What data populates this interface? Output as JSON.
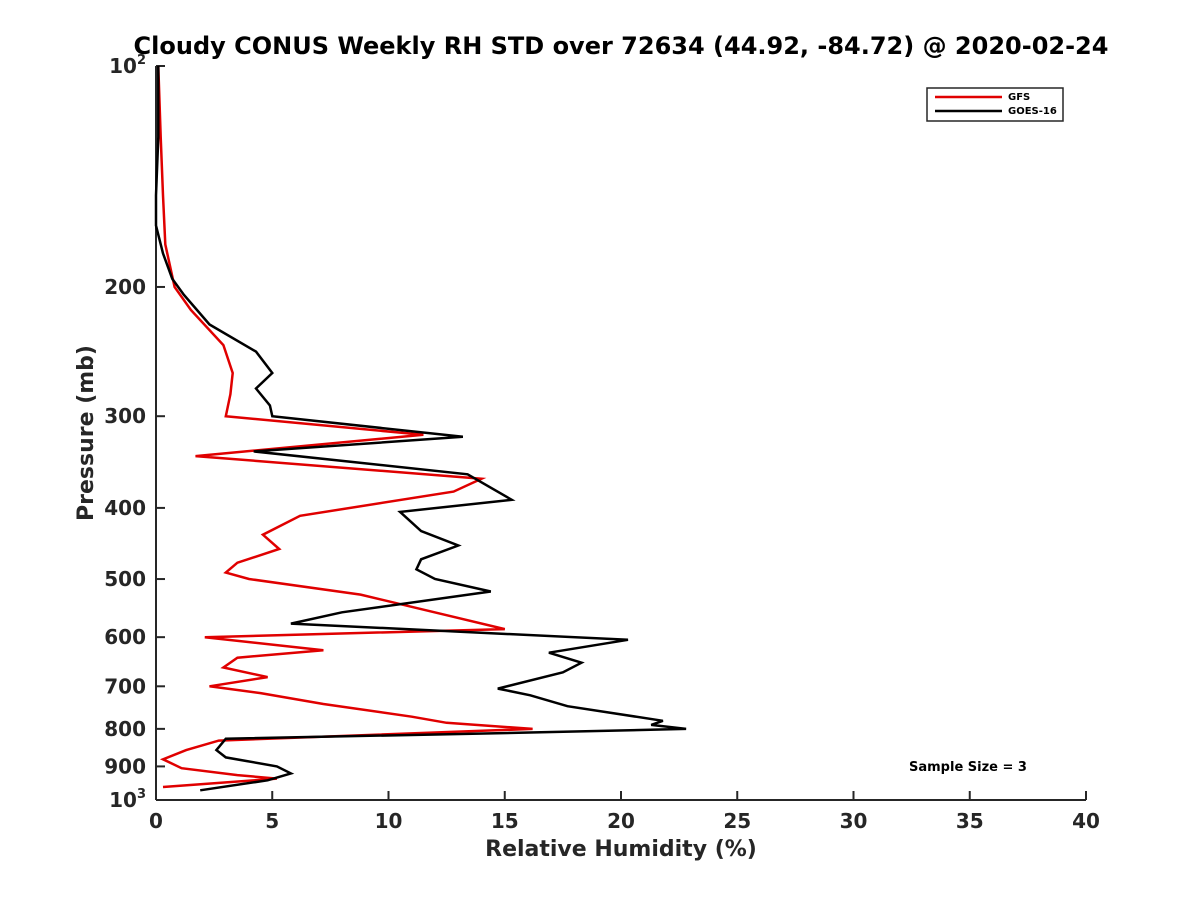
{
  "chart_data": {
    "type": "line",
    "title": "Cloudy CONUS Weekly RH STD over 72634 (44.92, -84.72) @ 2020-02-24",
    "xlabel": "Relative Humidity (%)",
    "ylabel": "Pressure (mb)",
    "xlim": [
      0,
      40
    ],
    "ylim": [
      100,
      1000
    ],
    "y_scale": "log",
    "y_reversed": true,
    "grid": false,
    "legend_position": "top-right",
    "x_ticks": [
      "0",
      "5",
      "10",
      "15",
      "20",
      "25",
      "30",
      "35",
      "40"
    ],
    "y_ticks": [
      {
        "value": 100,
        "base": "10",
        "exp": "2"
      },
      {
        "value": 200,
        "base": "200",
        "exp": ""
      },
      {
        "value": 300,
        "base": "300",
        "exp": ""
      },
      {
        "value": 400,
        "base": "400",
        "exp": ""
      },
      {
        "value": 500,
        "base": "500",
        "exp": ""
      },
      {
        "value": 600,
        "base": "600",
        "exp": ""
      },
      {
        "value": 700,
        "base": "700",
        "exp": ""
      },
      {
        "value": 800,
        "base": "800",
        "exp": ""
      },
      {
        "value": 900,
        "base": "900",
        "exp": ""
      },
      {
        "value": 1000,
        "base": "10",
        "exp": "3"
      }
    ],
    "annotation": "Sample Size = 3",
    "series": [
      {
        "name": "GFS",
        "color": "#e00000",
        "points": [
          [
            0.1,
            100
          ],
          [
            0.2,
            125
          ],
          [
            0.3,
            150
          ],
          [
            0.4,
            175
          ],
          [
            0.8,
            200
          ],
          [
            1.5,
            215
          ],
          [
            2.9,
            240
          ],
          [
            3.3,
            262
          ],
          [
            3.2,
            280
          ],
          [
            3.0,
            300
          ],
          [
            11.5,
            318
          ],
          [
            1.7,
            340
          ],
          [
            14.0,
            365
          ],
          [
            12.8,
            380
          ],
          [
            6.2,
            410
          ],
          [
            4.6,
            435
          ],
          [
            5.3,
            455
          ],
          [
            3.5,
            475
          ],
          [
            3.0,
            490
          ],
          [
            4.0,
            500
          ],
          [
            8.8,
            525
          ],
          [
            12.5,
            560
          ],
          [
            15.0,
            585
          ],
          [
            2.1,
            600
          ],
          [
            7.2,
            625
          ],
          [
            3.5,
            640
          ],
          [
            2.9,
            660
          ],
          [
            4.8,
            680
          ],
          [
            2.3,
            700
          ],
          [
            4.5,
            715
          ],
          [
            7.2,
            740
          ],
          [
            11.0,
            770
          ],
          [
            12.5,
            785
          ],
          [
            16.2,
            800
          ],
          [
            2.7,
            830
          ],
          [
            1.3,
            855
          ],
          [
            0.3,
            880
          ],
          [
            1.1,
            905
          ],
          [
            3.5,
            925
          ],
          [
            5.2,
            935
          ],
          [
            0.3,
            960
          ]
        ]
      },
      {
        "name": "GOES-16",
        "color": "#000000",
        "points": [
          [
            0.1,
            100
          ],
          [
            0.1,
            125
          ],
          [
            0.0,
            150
          ],
          [
            0.0,
            165
          ],
          [
            0.3,
            180
          ],
          [
            0.7,
            195
          ],
          [
            1.2,
            205
          ],
          [
            2.3,
            225
          ],
          [
            4.3,
            245
          ],
          [
            5.0,
            262
          ],
          [
            4.3,
            275
          ],
          [
            4.9,
            290
          ],
          [
            5.0,
            300
          ],
          [
            13.2,
            320
          ],
          [
            4.2,
            335
          ],
          [
            13.4,
            360
          ],
          [
            15.3,
            390
          ],
          [
            10.5,
            405
          ],
          [
            11.4,
            430
          ],
          [
            13.0,
            450
          ],
          [
            11.4,
            470
          ],
          [
            11.2,
            485
          ],
          [
            12.0,
            500
          ],
          [
            14.4,
            520
          ],
          [
            8.0,
            555
          ],
          [
            5.8,
            575
          ],
          [
            20.3,
            605
          ],
          [
            16.9,
            630
          ],
          [
            18.3,
            650
          ],
          [
            17.5,
            670
          ],
          [
            14.7,
            705
          ],
          [
            16.1,
            720
          ],
          [
            17.7,
            745
          ],
          [
            21.8,
            780
          ],
          [
            21.3,
            790
          ],
          [
            22.8,
            800
          ],
          [
            15.6,
            810
          ],
          [
            3.0,
            825
          ],
          [
            2.6,
            855
          ],
          [
            3.0,
            875
          ],
          [
            5.2,
            900
          ],
          [
            5.8,
            920
          ],
          [
            4.8,
            940
          ],
          [
            1.9,
            970
          ]
        ]
      }
    ]
  }
}
